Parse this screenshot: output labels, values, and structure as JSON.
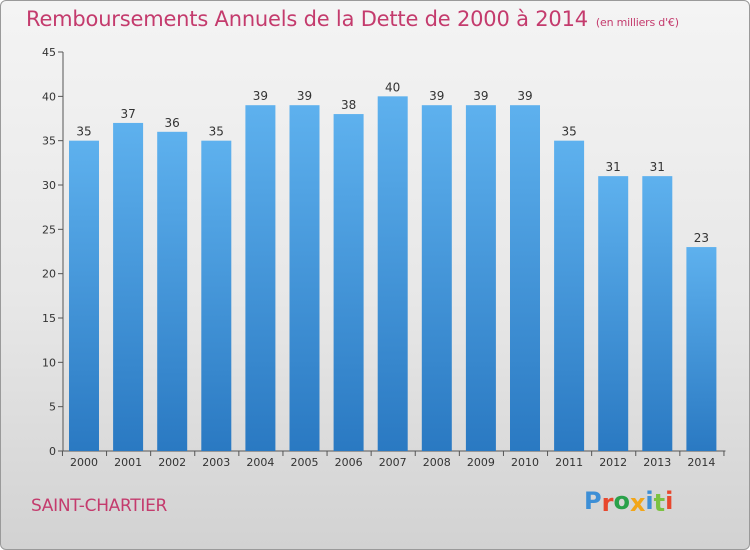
{
  "chart_data": {
    "type": "bar",
    "title": "Remboursements Annuels de la Dette de 2000 à 2014",
    "subtitle": "(en milliers d'€)",
    "categories": [
      "2000",
      "2001",
      "2002",
      "2003",
      "2004",
      "2005",
      "2006",
      "2007",
      "2008",
      "2009",
      "2010",
      "2011",
      "2012",
      "2013",
      "2014"
    ],
    "values": [
      35,
      37,
      36,
      35,
      39,
      39,
      38,
      40,
      39,
      39,
      39,
      35,
      31,
      31,
      23
    ],
    "ylim": [
      0,
      45
    ],
    "yticks": [
      0,
      5,
      10,
      15,
      20,
      25,
      30,
      35,
      40,
      45
    ],
    "grid": false,
    "bar_color": "#3f98dd",
    "xlabel": "",
    "ylabel": ""
  },
  "footer": {
    "commune": "SAINT-CHARTIER",
    "logo_text": "Proxiti"
  },
  "colors": {
    "title": "#c43b6d",
    "logo": [
      "#3d8fd6",
      "#e8472d",
      "#2aa14a",
      "#f2a619",
      "#3d8fd6",
      "#7cc242",
      "#e8472d"
    ]
  }
}
